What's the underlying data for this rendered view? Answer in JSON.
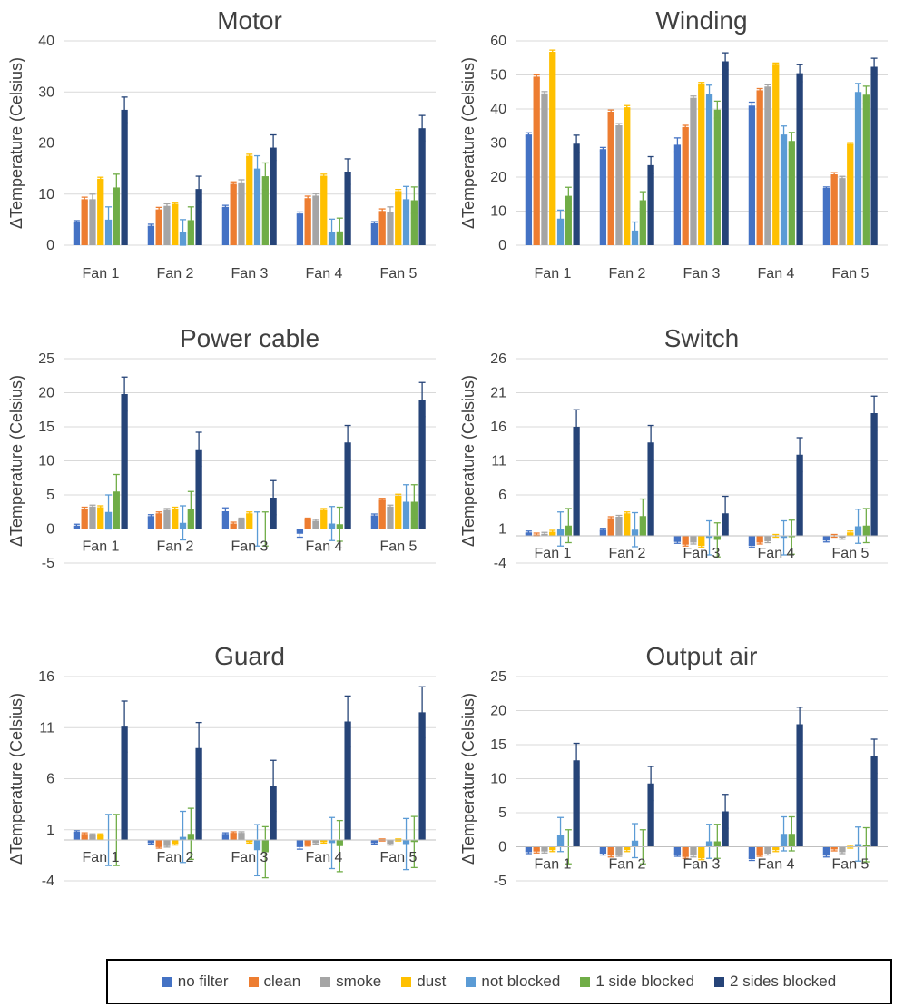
{
  "series_colors": [
    "#4472c4",
    "#ed7d31",
    "#a5a5a5",
    "#ffc000",
    "#5b9bd5",
    "#70ad47",
    "#264478"
  ],
  "legend": [
    "no filter",
    "clean",
    "smoke",
    "dust",
    "not blocked",
    "1 side blocked",
    "2 sides blocked"
  ],
  "chart_data": [
    {
      "type": "bar",
      "title": "Motor",
      "ylabel": "ΔTemperature (Celsius)",
      "categories": [
        "Fan 1",
        "Fan 2",
        "Fan 3",
        "Fan 4",
        "Fan 5"
      ],
      "ylim": [
        0,
        40
      ],
      "yticks": [
        0,
        10,
        20,
        30,
        40
      ],
      "grid": true,
      "series": [
        {
          "name": "no filter",
          "values": [
            4.5,
            3.8,
            7.5,
            6.2,
            4.3
          ],
          "errors": [
            0.3,
            0.3,
            0.3,
            0.3,
            0.3
          ]
        },
        {
          "name": "clean",
          "values": [
            9.0,
            7.0,
            12.0,
            9.2,
            6.7
          ],
          "errors": [
            0.4,
            0.4,
            0.4,
            0.4,
            0.4
          ]
        },
        {
          "name": "smoke",
          "values": [
            9.0,
            7.7,
            12.3,
            9.7,
            6.5
          ],
          "errors": [
            1.0,
            0.4,
            0.5,
            0.4,
            1.0
          ]
        },
        {
          "name": "dust",
          "values": [
            13.0,
            8.1,
            17.5,
            13.6,
            10.6
          ],
          "errors": [
            0.3,
            0.3,
            0.3,
            0.3,
            0.3
          ]
        },
        {
          "name": "not blocked",
          "values": [
            5.0,
            2.5,
            15.0,
            2.6,
            9.0
          ],
          "errors": [
            2.5,
            2.5,
            2.5,
            2.5,
            2.5
          ]
        },
        {
          "name": "1 side blocked",
          "values": [
            11.3,
            4.9,
            13.5,
            2.7,
            8.8
          ],
          "errors": [
            2.6,
            2.6,
            2.6,
            2.6,
            2.6
          ]
        },
        {
          "name": "2 sides blocked",
          "values": [
            26.5,
            11.0,
            19.1,
            14.4,
            22.9
          ],
          "errors": [
            2.5,
            2.5,
            2.5,
            2.5,
            2.5
          ]
        }
      ]
    },
    {
      "type": "bar",
      "title": "Winding",
      "ylabel": "ΔTemperature (Celsius)",
      "categories": [
        "Fan 1",
        "Fan 2",
        "Fan 3",
        "Fan 4",
        "Fan 5"
      ],
      "ylim": [
        0,
        60
      ],
      "yticks": [
        0,
        10,
        20,
        30,
        40,
        50,
        60
      ],
      "grid": true,
      "series": [
        {
          "name": "no filter",
          "values": [
            32.5,
            28.2,
            29.5,
            41.0,
            16.8
          ],
          "errors": [
            0.5,
            0.5,
            2.0,
            1.0,
            0.3
          ]
        },
        {
          "name": "clean",
          "values": [
            49.5,
            39.2,
            34.7,
            45.5,
            20.8
          ],
          "errors": [
            0.5,
            0.5,
            0.5,
            0.5,
            0.5
          ]
        },
        {
          "name": "smoke",
          "values": [
            44.6,
            35.2,
            43.3,
            46.6,
            19.7
          ],
          "errors": [
            0.5,
            0.5,
            0.5,
            0.5,
            0.5
          ]
        },
        {
          "name": "dust",
          "values": [
            56.8,
            40.5,
            47.3,
            53.0,
            29.8
          ],
          "errors": [
            0.5,
            0.5,
            0.5,
            0.5,
            0.3
          ]
        },
        {
          "name": "not blocked",
          "values": [
            7.8,
            4.3,
            44.5,
            32.5,
            45.0
          ],
          "errors": [
            2.5,
            2.5,
            2.5,
            2.5,
            2.5
          ]
        },
        {
          "name": "1 side blocked",
          "values": [
            14.5,
            13.2,
            39.8,
            30.6,
            44.2
          ],
          "errors": [
            2.5,
            2.5,
            2.5,
            2.5,
            2.5
          ]
        },
        {
          "name": "2 sides blocked",
          "values": [
            29.8,
            23.5,
            54.0,
            50.5,
            52.4
          ],
          "errors": [
            2.5,
            2.5,
            2.5,
            2.5,
            2.5
          ]
        }
      ]
    },
    {
      "type": "bar",
      "title": "Power cable",
      "ylabel": "ΔTemperature (Celsius)",
      "categories": [
        "Fan 1",
        "Fan 2",
        "Fan 3",
        "Fan 4",
        "Fan 5"
      ],
      "ylim": [
        -5,
        25
      ],
      "yticks": [
        -5,
        0,
        5,
        10,
        15,
        20,
        25
      ],
      "grid": true,
      "series": [
        {
          "name": "no filter",
          "values": [
            0.5,
            1.9,
            2.6,
            -0.7,
            2.0
          ],
          "errors": [
            0.2,
            0.2,
            0.5,
            0.5,
            0.2
          ]
        },
        {
          "name": "clean",
          "values": [
            3.0,
            2.3,
            0.8,
            1.4,
            4.3
          ],
          "errors": [
            0.2,
            0.2,
            0.2,
            0.2,
            0.2
          ]
        },
        {
          "name": "smoke",
          "values": [
            3.3,
            2.8,
            1.4,
            1.2,
            3.3
          ],
          "errors": [
            0.2,
            0.2,
            0.2,
            0.2,
            0.2
          ]
        },
        {
          "name": "dust",
          "values": [
            3.2,
            3.0,
            2.3,
            2.8,
            4.9
          ],
          "errors": [
            0.2,
            0.2,
            0.2,
            0.2,
            0.2
          ]
        },
        {
          "name": "not blocked",
          "values": [
            2.5,
            0.9,
            0.0,
            0.8,
            4.0
          ],
          "errors": [
            2.5,
            2.5,
            2.5,
            2.5,
            2.5
          ]
        },
        {
          "name": "1 side blocked",
          "values": [
            5.5,
            3.0,
            0.0,
            0.7,
            4.0
          ],
          "errors": [
            2.5,
            2.5,
            2.5,
            2.5,
            2.5
          ]
        },
        {
          "name": "2 sides blocked",
          "values": [
            19.8,
            11.7,
            4.6,
            12.7,
            19.0
          ],
          "errors": [
            2.5,
            2.5,
            2.5,
            2.5,
            2.5
          ]
        }
      ]
    },
    {
      "type": "bar",
      "title": "Switch",
      "ylabel": "ΔTemperature (Celsius)",
      "categories": [
        "Fan 1",
        "Fan 2",
        "Fan 3",
        "Fan 4",
        "Fan 5"
      ],
      "ylim": [
        -4,
        26
      ],
      "yticks": [
        -4,
        1,
        6,
        11,
        16,
        21,
        26
      ],
      "grid": true,
      "series": [
        {
          "name": "no filter",
          "values": [
            0.5,
            0.9,
            -0.9,
            -1.5,
            -0.7
          ],
          "errors": [
            0.2,
            0.2,
            0.2,
            0.2,
            0.2
          ]
        },
        {
          "name": "clean",
          "values": [
            0.2,
            2.6,
            -1.3,
            -1.0,
            0.0
          ],
          "errors": [
            0.2,
            0.2,
            0.2,
            0.2,
            0.2
          ]
        },
        {
          "name": "smoke",
          "values": [
            0.3,
            2.8,
            -1.0,
            -0.8,
            -0.3
          ],
          "errors": [
            0.2,
            0.2,
            0.2,
            0.2,
            0.2
          ]
        },
        {
          "name": "dust",
          "values": [
            0.6,
            3.3,
            -1.5,
            0.0,
            0.5
          ],
          "errors": [
            0.2,
            0.2,
            0.2,
            0.2,
            0.2
          ]
        },
        {
          "name": "not blocked",
          "values": [
            1.0,
            0.9,
            -0.3,
            -0.3,
            1.4
          ],
          "errors": [
            2.5,
            2.5,
            2.5,
            2.5,
            2.5
          ]
        },
        {
          "name": "1 side blocked",
          "values": [
            1.5,
            2.9,
            -0.6,
            -0.2,
            1.5
          ],
          "errors": [
            2.5,
            2.5,
            2.5,
            2.5,
            2.5
          ]
        },
        {
          "name": "2 sides blocked",
          "values": [
            16.0,
            13.7,
            3.3,
            11.9,
            18.0
          ],
          "errors": [
            2.5,
            2.5,
            2.5,
            2.5,
            2.5
          ]
        }
      ]
    },
    {
      "type": "bar",
      "title": "Guard",
      "ylabel": "ΔTemperature (Celsius)",
      "categories": [
        "Fan 1",
        "Fan 2",
        "Fan 3",
        "Fan 4",
        "Fan 5"
      ],
      "ylim": [
        -4,
        16
      ],
      "yticks": [
        -4,
        1,
        6,
        11,
        16
      ],
      "grid": true,
      "series": [
        {
          "name": "no filter",
          "values": [
            0.8,
            -0.3,
            0.6,
            -0.7,
            -0.3
          ],
          "errors": [
            0.1,
            0.1,
            0.1,
            0.2,
            0.1
          ]
        },
        {
          "name": "clean",
          "values": [
            0.6,
            -0.7,
            0.7,
            -0.5,
            0.0
          ],
          "errors": [
            0.1,
            0.1,
            0.1,
            0.1,
            0.1
          ]
        },
        {
          "name": "smoke",
          "values": [
            0.5,
            -0.6,
            0.7,
            -0.3,
            -0.4
          ],
          "errors": [
            0.1,
            0.1,
            0.1,
            0.1,
            0.1
          ]
        },
        {
          "name": "dust",
          "values": [
            0.5,
            -0.4,
            -0.2,
            -0.2,
            0.0
          ],
          "errors": [
            0.1,
            0.1,
            0.1,
            0.1,
            0.1
          ]
        },
        {
          "name": "not blocked",
          "values": [
            0.0,
            0.3,
            -1.0,
            -0.3,
            -0.4
          ],
          "errors": [
            2.5,
            2.5,
            2.5,
            2.5,
            2.5
          ]
        },
        {
          "name": "1 side blocked",
          "values": [
            0.0,
            0.6,
            -1.2,
            -0.6,
            -0.2
          ],
          "errors": [
            2.5,
            2.5,
            2.5,
            2.5,
            2.5
          ]
        },
        {
          "name": "2 sides blocked",
          "values": [
            11.1,
            9.0,
            5.3,
            11.6,
            12.5
          ],
          "errors": [
            2.5,
            2.5,
            2.5,
            2.5,
            2.5
          ]
        }
      ]
    },
    {
      "type": "bar",
      "title": "Output air",
      "ylabel": "ΔTemperature (Celsius)",
      "categories": [
        "Fan 1",
        "Fan 2",
        "Fan 3",
        "Fan 4",
        "Fan 5"
      ],
      "ylim": [
        -5,
        25
      ],
      "yticks": [
        -5,
        0,
        5,
        10,
        15,
        20,
        25
      ],
      "grid": true,
      "series": [
        {
          "name": "no filter",
          "values": [
            -0.8,
            -1.0,
            -1.2,
            -1.8,
            -1.3
          ],
          "errors": [
            0.2,
            0.2,
            0.2,
            0.2,
            0.2
          ]
        },
        {
          "name": "clean",
          "values": [
            -0.7,
            -1.3,
            -1.5,
            -1.2,
            -0.4
          ],
          "errors": [
            0.2,
            0.2,
            0.2,
            0.2,
            0.2
          ]
        },
        {
          "name": "smoke",
          "values": [
            -0.7,
            -1.2,
            -1.3,
            -1.0,
            -0.8
          ],
          "errors": [
            0.2,
            0.2,
            0.2,
            0.2,
            0.2
          ]
        },
        {
          "name": "dust",
          "values": [
            -0.5,
            -0.5,
            -1.7,
            -0.5,
            0.0
          ],
          "errors": [
            0.2,
            0.2,
            0.2,
            0.2,
            0.2
          ]
        },
        {
          "name": "not blocked",
          "values": [
            1.8,
            0.9,
            0.8,
            1.9,
            0.4
          ],
          "errors": [
            2.5,
            2.5,
            2.5,
            2.5,
            2.5
          ]
        },
        {
          "name": "1 side blocked",
          "values": [
            0.0,
            0.0,
            0.8,
            1.9,
            0.3
          ],
          "errors": [
            2.5,
            2.5,
            2.5,
            2.5,
            2.5
          ]
        },
        {
          "name": "2 sides blocked",
          "values": [
            12.7,
            9.3,
            5.2,
            18.0,
            13.3
          ],
          "errors": [
            2.5,
            2.5,
            2.5,
            2.5,
            2.5
          ]
        }
      ]
    }
  ]
}
